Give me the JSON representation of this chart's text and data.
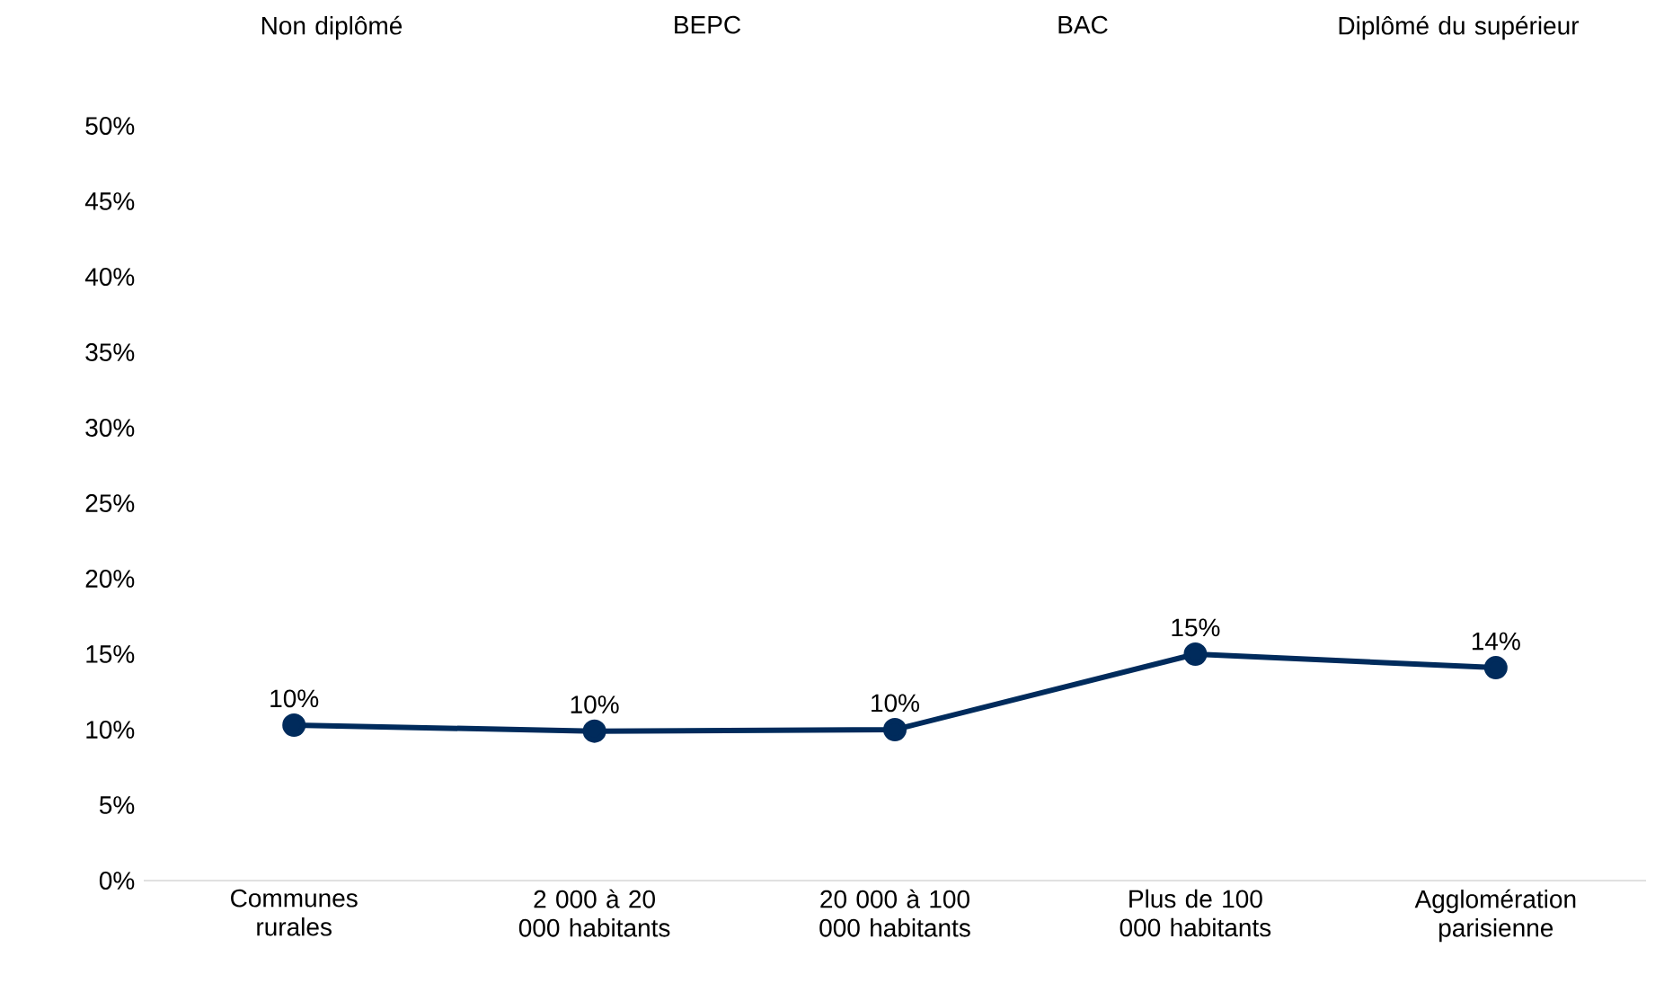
{
  "chart_data": {
    "type": "line",
    "categories": [
      "Communes rurales",
      "2 000 à 20 000 habitants",
      "20 000 à 100 000 habitants",
      "Plus de 100 000 habitants",
      "Agglomération parisienne"
    ],
    "series": [
      {
        "color": "#002b5c",
        "values": [
          10.3,
          9.9,
          10.0,
          15.0,
          14.1
        ],
        "value_labels": [
          "10%",
          "10%",
          "10%",
          "15%",
          "14%"
        ]
      }
    ],
    "ylim": [
      0,
      50
    ],
    "yticks": [
      {
        "value": 0,
        "label": "0%"
      },
      {
        "value": 5,
        "label": "5%"
      },
      {
        "value": 10,
        "label": "10%"
      },
      {
        "value": 15,
        "label": "15%"
      },
      {
        "value": 20,
        "label": "20%"
      },
      {
        "value": 25,
        "label": "25%"
      },
      {
        "value": 30,
        "label": "30%"
      },
      {
        "value": 35,
        "label": "35%"
      },
      {
        "value": 40,
        "label": "40%"
      },
      {
        "value": 45,
        "label": "45%"
      },
      {
        "value": 50,
        "label": "50%"
      }
    ],
    "annotations": [
      "Non diplômé",
      "BEPC",
      "BAC",
      "Diplômé du supérieur"
    ],
    "marker": "circle",
    "line_style": "solid"
  }
}
